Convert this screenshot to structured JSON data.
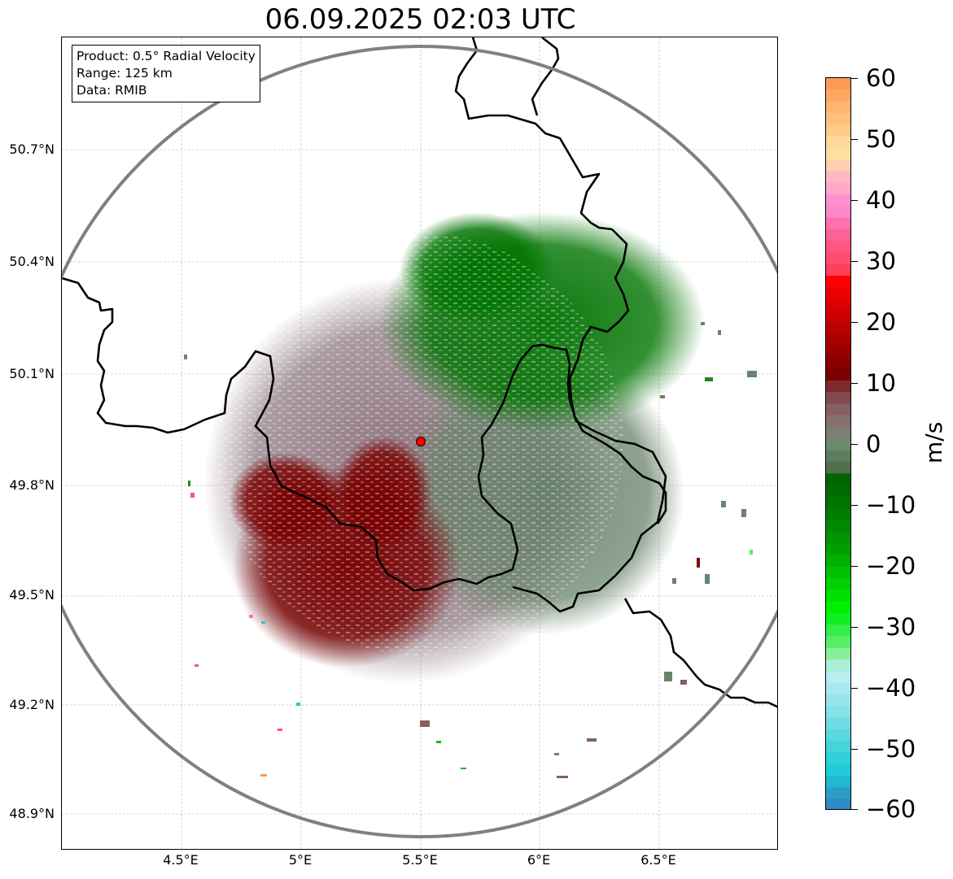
{
  "title": "06.09.2025 02:03 UTC",
  "info_box": {
    "product": "Product: 0.5° Radial Velocity",
    "range": "Range: 125 km",
    "data": "Data: RMIB"
  },
  "map": {
    "lat_labels": [
      "50.7°N",
      "50.4°N",
      "50.1°N",
      "49.8°N",
      "49.5°N",
      "49.2°N",
      "48.9°N"
    ],
    "lon_labels": [
      "4.5°E",
      "5°E",
      "5.5°E",
      "6°E",
      "6.5°E"
    ],
    "radar_site_color": "#ff0000",
    "range_ring_color": "#808080",
    "border_color": "#000000",
    "gridline_color": "#b0b0b0"
  },
  "colorbar": {
    "unit": "m/s",
    "tick_labels": [
      "60",
      "50",
      "40",
      "30",
      "20",
      "10",
      "0",
      "−10",
      "−20",
      "−30",
      "−40",
      "−50",
      "−60"
    ],
    "range": [
      -60,
      60
    ],
    "colors_top_to_bottom": [
      "#ff9a55",
      "#ffa862",
      "#ffb46f",
      "#ffc07b",
      "#ffcb86",
      "#ffd89a",
      "#ffe0a0",
      "#ffd0b0",
      "#ffb8c0",
      "#ffa8c8",
      "#ff90d0",
      "#ff88c8",
      "#ff70b0",
      "#ff6098",
      "#ff5880",
      "#ff4c70",
      "#ff4058",
      "#ff0000",
      "#ee0000",
      "#dd0000",
      "#cc0000",
      "#bb0000",
      "#aa0000",
      "#990000",
      "#880000",
      "#7a0000",
      "#7c2b2b",
      "#834850",
      "#856060",
      "#887070",
      "#7e7e76",
      "#6d8a6c",
      "#5e7d5e",
      "#4f6f4f",
      "#006400",
      "#006a00",
      "#007400",
      "#007e00",
      "#008800",
      "#009400",
      "#00a000",
      "#00b000",
      "#00c000",
      "#00d000",
      "#00e000",
      "#00f000",
      "#11ee22",
      "#33ee44",
      "#55ee66",
      "#88ee99",
      "#a8eed8",
      "#b8eef0",
      "#a8e8ee",
      "#98e4ec",
      "#86e0e8",
      "#70dce4",
      "#5ad8e0",
      "#44d4dc",
      "#30d0d8",
      "#22ccd6",
      "#22b8d0",
      "#2a9ec8",
      "#2c8cc4"
    ]
  }
}
